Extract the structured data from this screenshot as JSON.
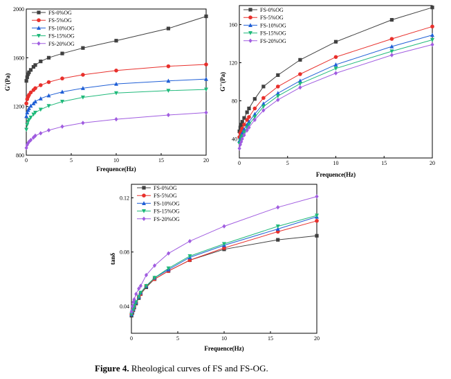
{
  "figure": {
    "caption_label": "Figure 4.",
    "caption_text": " Rheological curves of FS and FS-OG."
  },
  "series_styles": [
    {
      "name": "FS-0%OG",
      "color": "#404040",
      "marker": "square"
    },
    {
      "name": "FS-5%OG",
      "color": "#e8302c",
      "marker": "circle"
    },
    {
      "name": "FS-10%OG",
      "color": "#1f5fd6",
      "marker": "triangle-up"
    },
    {
      "name": "FS-15%OG",
      "color": "#1fb97a",
      "marker": "triangle-down"
    },
    {
      "name": "FS-20%OG",
      "color": "#a05ce0",
      "marker": "diamond"
    }
  ],
  "chart_data": [
    {
      "type": "line",
      "ylabel": "G'(Pa)",
      "xlabel": "Frequence(Hz)",
      "xlim": [
        0,
        20
      ],
      "ylim": [
        800,
        2000
      ],
      "xticks": [
        0,
        5,
        10,
        15,
        20
      ],
      "yticks": [
        800,
        1200,
        1600,
        2000
      ],
      "legend_position": "top-left",
      "x": [
        0.01,
        0.1,
        0.2,
        0.3,
        0.5,
        0.8,
        1.0,
        1.6,
        2.5,
        4.0,
        6.3,
        10.0,
        15.8,
        20.0
      ],
      "series": [
        {
          "name": "FS-0%OG",
          "values": [
            1410,
            1440,
            1465,
            1480,
            1500,
            1525,
            1540,
            1570,
            1600,
            1635,
            1680,
            1740,
            1840,
            1940
          ]
        },
        {
          "name": "FS-5%OG",
          "values": [
            1225,
            1260,
            1280,
            1295,
            1315,
            1335,
            1350,
            1375,
            1400,
            1430,
            1460,
            1495,
            1530,
            1545
          ]
        },
        {
          "name": "FS-10%OG",
          "values": [
            1120,
            1150,
            1170,
            1185,
            1205,
            1225,
            1240,
            1265,
            1290,
            1320,
            1350,
            1385,
            1410,
            1425
          ]
        },
        {
          "name": "FS-15%OG",
          "values": [
            1010,
            1050,
            1075,
            1090,
            1110,
            1135,
            1150,
            1175,
            1205,
            1240,
            1275,
            1310,
            1330,
            1340
          ]
        },
        {
          "name": "FS-20%OG",
          "values": [
            860,
            885,
            900,
            910,
            925,
            945,
            960,
            980,
            1005,
            1035,
            1065,
            1095,
            1130,
            1150
          ]
        }
      ]
    },
    {
      "type": "line",
      "ylabel": "G''(Pa)",
      "xlabel": "Frequence(Hz)",
      "xlim": [
        0,
        20
      ],
      "ylim": [
        20,
        180
      ],
      "xticks": [
        0,
        5,
        10,
        15,
        20
      ],
      "yticks": [
        40,
        80,
        120,
        160
      ],
      "legend_position": "top-left",
      "x": [
        0.01,
        0.1,
        0.2,
        0.3,
        0.5,
        0.8,
        1.0,
        1.6,
        2.5,
        4.0,
        6.3,
        10.0,
        15.8,
        20.0
      ],
      "series": [
        {
          "name": "FS-0%OG",
          "values": [
            48,
            52,
            55,
            58,
            62,
            68,
            72,
            82,
            95,
            107,
            123,
            142,
            165,
            178
          ]
        },
        {
          "name": "FS-5%OG",
          "values": [
            42,
            46,
            48,
            51,
            55,
            60,
            63,
            72,
            83,
            95,
            108,
            126,
            145,
            158
          ]
        },
        {
          "name": "FS-10%OG",
          "values": [
            38,
            41,
            44,
            46,
            50,
            55,
            58,
            66,
            77,
            88,
            101,
            118,
            137,
            149
          ]
        },
        {
          "name": "FS-15%OG",
          "values": [
            35,
            38,
            41,
            43,
            47,
            52,
            55,
            63,
            74,
            85,
            98,
            114,
            132,
            144
          ]
        },
        {
          "name": "FS-20%OG",
          "values": [
            30,
            34,
            37,
            40,
            44,
            49,
            52,
            60,
            70,
            81,
            94,
            109,
            128,
            139
          ]
        }
      ]
    },
    {
      "type": "line",
      "ylabel": "tanδ",
      "xlabel": "Frequence(Hz)",
      "xlim": [
        0,
        20
      ],
      "ylim": [
        0.02,
        0.13
      ],
      "xticks": [
        0,
        5,
        10,
        15,
        20
      ],
      "yticks": [
        0.04,
        0.08,
        0.12
      ],
      "legend_position": "top-left",
      "x": [
        0.01,
        0.1,
        0.2,
        0.3,
        0.5,
        0.8,
        1.0,
        1.6,
        2.5,
        4.0,
        6.3,
        10.0,
        15.8,
        20.0
      ],
      "series": [
        {
          "name": "FS-0%OG",
          "values": [
            0.033,
            0.035,
            0.037,
            0.039,
            0.042,
            0.046,
            0.049,
            0.054,
            0.06,
            0.066,
            0.074,
            0.082,
            0.089,
            0.092
          ]
        },
        {
          "name": "FS-5%OG",
          "values": [
            0.034,
            0.036,
            0.038,
            0.04,
            0.043,
            0.047,
            0.049,
            0.055,
            0.06,
            0.066,
            0.074,
            0.083,
            0.095,
            0.103
          ]
        },
        {
          "name": "FS-10%OG",
          "values": [
            0.034,
            0.036,
            0.038,
            0.04,
            0.043,
            0.047,
            0.05,
            0.055,
            0.061,
            0.067,
            0.076,
            0.085,
            0.097,
            0.106
          ]
        },
        {
          "name": "FS-15%OG",
          "values": [
            0.034,
            0.036,
            0.038,
            0.04,
            0.043,
            0.047,
            0.05,
            0.055,
            0.061,
            0.068,
            0.077,
            0.086,
            0.099,
            0.107
          ]
        },
        {
          "name": "FS-20%OG",
          "values": [
            0.036,
            0.04,
            0.043,
            0.045,
            0.049,
            0.053,
            0.055,
            0.063,
            0.07,
            0.079,
            0.088,
            0.099,
            0.113,
            0.121
          ]
        }
      ]
    }
  ]
}
